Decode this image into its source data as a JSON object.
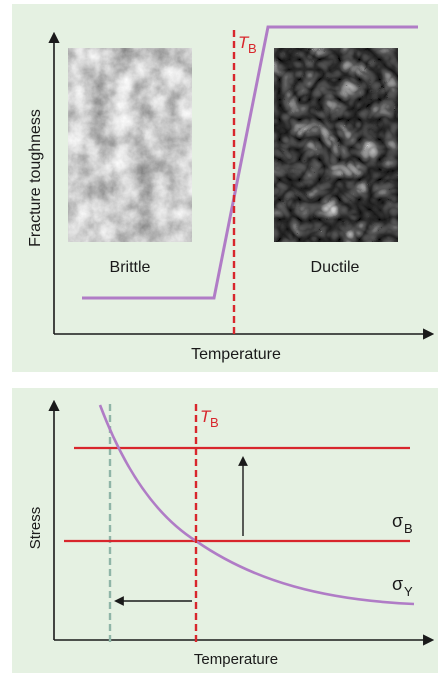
{
  "top_panel": {
    "y_axis_label": "Fracture toughness",
    "x_axis_label": "Temperature",
    "threshold_label_main": "T",
    "threshold_label_sub": "B",
    "left_image_caption": "Brittle",
    "right_image_caption": "Ductile"
  },
  "bottom_panel": {
    "y_axis_label": "Stress",
    "x_axis_label": "Temperature",
    "threshold_label_main": "T",
    "threshold_label_sub": "B",
    "line_b_label_main": "σ",
    "line_b_label_sub": "B",
    "curve_y_label_main": "σ",
    "curve_y_label_sub": "Y"
  },
  "colors": {
    "panel_background": "#e5f1e2",
    "curve": "#b07cc6",
    "threshold": "#d8262c",
    "dashed_gray": "#8fb5a7",
    "axis": "#1a1a1a"
  }
}
